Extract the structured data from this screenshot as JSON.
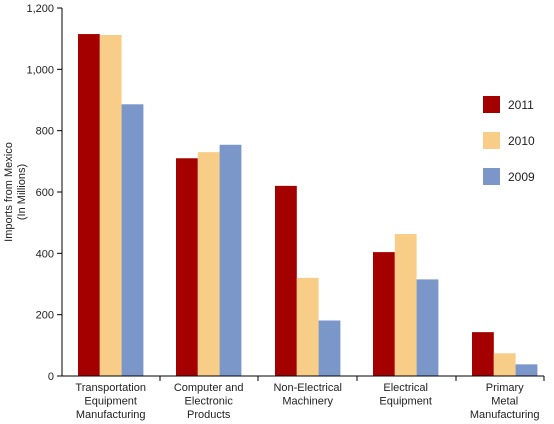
{
  "chart_data": {
    "type": "bar",
    "title": "",
    "ylabel_lines": [
      "Imports from Mexico",
      "(In Millions)"
    ],
    "xlabel": "",
    "ylim": [
      0,
      1200
    ],
    "yticks": [
      0,
      200,
      400,
      600,
      800,
      1000,
      1200
    ],
    "ytick_labels": [
      "0",
      "200",
      "400",
      "600",
      "800",
      "1,000",
      "1,200"
    ],
    "grid": false,
    "legend_position": "right",
    "categories": [
      [
        "Transportation",
        "Equipment",
        "Manufacturing"
      ],
      [
        "Computer and",
        "Electronic",
        "Products"
      ],
      [
        "Non-Electrical",
        "Machinery"
      ],
      [
        "Electrical",
        "Equipment"
      ],
      [
        "Primary",
        "Metal",
        "Manufacturing"
      ]
    ],
    "series": [
      {
        "name": "2011",
        "color": "#a50000",
        "values": [
          1115,
          710,
          620,
          404,
          143
        ]
      },
      {
        "name": "2010",
        "color": "#f7cd88",
        "values": [
          1112,
          730,
          320,
          463,
          74
        ]
      },
      {
        "name": "2009",
        "color": "#7b96c8",
        "values": [
          886,
          754,
          181,
          315,
          38
        ]
      }
    ]
  }
}
